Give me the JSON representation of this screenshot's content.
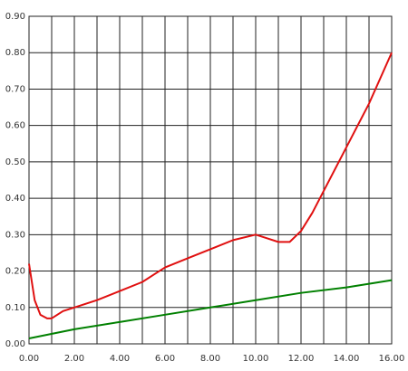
{
  "chart_data": {
    "type": "line",
    "series": [
      {
        "color": "#e01010",
        "x": [
          0,
          0.25,
          0.5,
          0.8,
          1,
          1.5,
          2,
          3,
          4,
          5,
          5.5,
          6,
          7,
          8,
          9,
          10,
          10.5,
          11,
          11.5,
          12,
          12.5,
          13,
          14,
          15,
          15.5,
          16
        ],
        "values": [
          0.22,
          0.12,
          0.08,
          0.07,
          0.07,
          0.09,
          0.1,
          0.12,
          0.145,
          0.17,
          0.19,
          0.21,
          0.235,
          0.26,
          0.285,
          0.3,
          0.29,
          0.28,
          0.28,
          0.31,
          0.36,
          0.42,
          0.54,
          0.66,
          0.73,
          0.8
        ]
      },
      {
        "color": "#008000",
        "x": [
          0,
          2,
          4,
          6,
          8,
          10,
          12,
          14,
          16
        ],
        "values": [
          0.015,
          0.04,
          0.06,
          0.08,
          0.1,
          0.12,
          0.14,
          0.155,
          0.175
        ]
      }
    ],
    "xlim": [
      0,
      16
    ],
    "ylim": [
      0,
      0.9
    ],
    "xticks": [
      {
        "value": 0,
        "label": "0.00"
      },
      {
        "value": 2,
        "label": "2.00"
      },
      {
        "value": 4,
        "label": "4.00"
      },
      {
        "value": 6,
        "label": "6.00"
      },
      {
        "value": 8,
        "label": "8.00"
      },
      {
        "value": 10,
        "label": "10.00"
      },
      {
        "value": 12,
        "label": "12.00"
      },
      {
        "value": 14,
        "label": "14.00"
      },
      {
        "value": 16,
        "label": "16.00"
      }
    ],
    "yticks": [
      {
        "value": 0,
        "label": "0.00"
      },
      {
        "value": 0.1,
        "label": "0.10"
      },
      {
        "value": 0.2,
        "label": "0.20"
      },
      {
        "value": 0.3,
        "label": "0.30"
      },
      {
        "value": 0.4,
        "label": "0.40"
      },
      {
        "value": 0.5,
        "label": "0.50"
      },
      {
        "value": 0.6,
        "label": "0.60"
      },
      {
        "value": 0.7,
        "label": "0.70"
      },
      {
        "value": 0.8,
        "label": "0.80"
      },
      {
        "value": 0.9,
        "label": "0.90"
      }
    ],
    "grid": true
  }
}
